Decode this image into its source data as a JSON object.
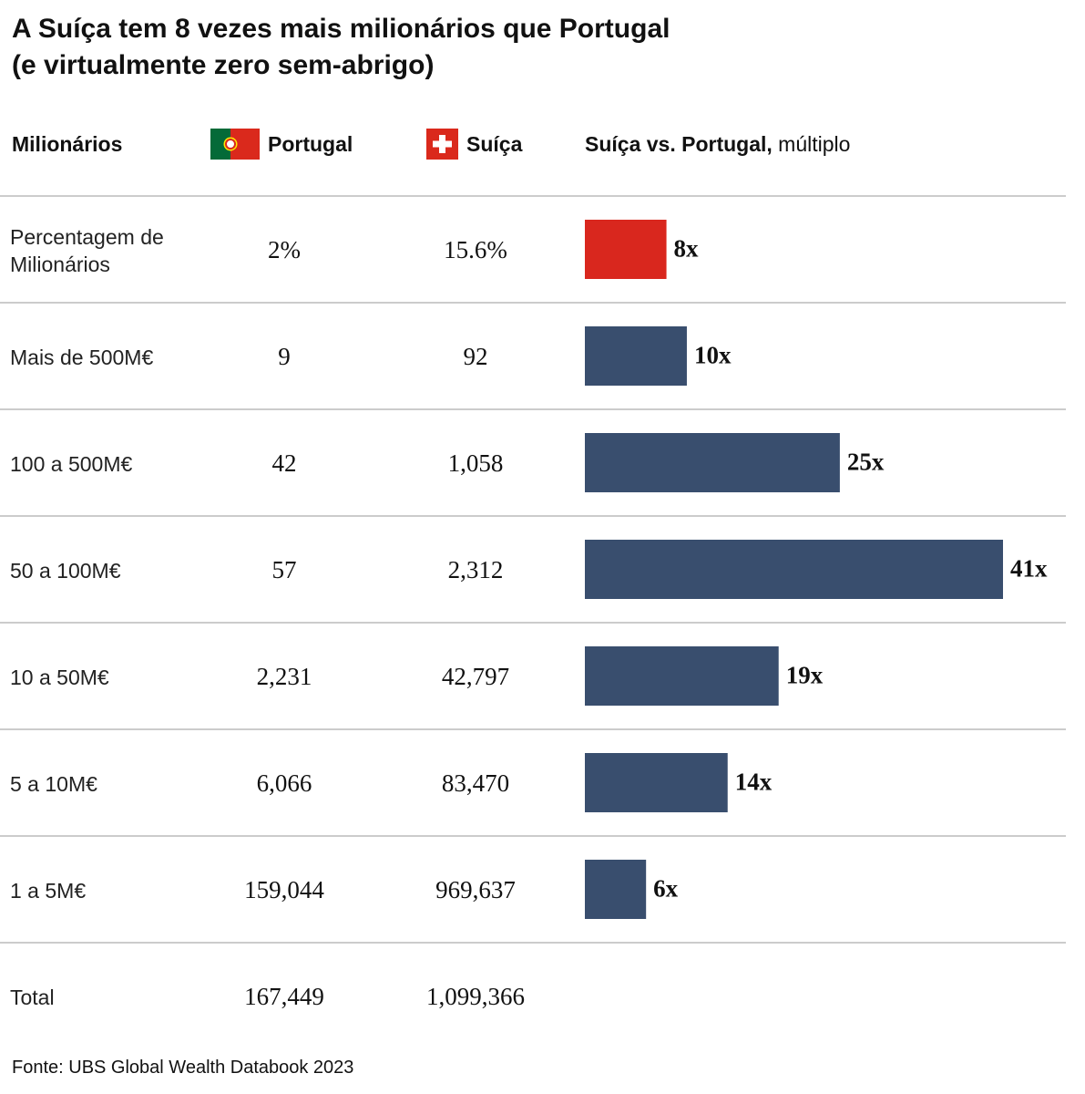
{
  "title_line1": "A Suíça tem 8 vezes mais milionários que Portugal",
  "title_line2": "(e virtualmente zero sem-abrigo)",
  "header": {
    "col_category": "Milionários",
    "col_portugal": "Portugal",
    "col_suica": "Suíça",
    "col_chart_bold": "Suíça vs. Portugal,",
    "col_chart_normal": " múltiplo"
  },
  "colors": {
    "highlight": "#d9271e",
    "bar": "#394e6e",
    "rule": "#cccccc"
  },
  "rows": [
    {
      "label": "Percentagem de Milionários",
      "portugal": "2%",
      "suica": "15.6%"
    },
    {
      "label": "Mais de 500M€",
      "portugal": "9",
      "suica": "92"
    },
    {
      "label": "100 a 500M€",
      "portugal": "42",
      "suica": "1,058"
    },
    {
      "label": "50 a 100M€",
      "portugal": "57",
      "suica": "2,312"
    },
    {
      "label": "10 a 50M€",
      "portugal": "2,231",
      "suica": "42,797"
    },
    {
      "label": "5 a 10M€",
      "portugal": "6,066",
      "suica": "83,470"
    },
    {
      "label": "1 a 5M€",
      "portugal": "159,044",
      "suica": "969,637"
    }
  ],
  "total": {
    "label": "Total",
    "portugal": "167,449",
    "suica": "1,099,366"
  },
  "chart_data": {
    "type": "bar",
    "orientation": "horizontal",
    "title": "Suíça vs. Portugal, múltiplo",
    "categories": [
      "Percentagem de Milionários",
      "Mais de 500M€",
      "100 a 500M€",
      "50 a 100M€",
      "10 a 50M€",
      "5 a 10M€",
      "1 a 5M€"
    ],
    "values": [
      8,
      10,
      25,
      41,
      19,
      14,
      6
    ],
    "value_labels": [
      "8x",
      "10x",
      "25x",
      "41x",
      "19x",
      "14x",
      "6x"
    ],
    "highlight_index": 0,
    "xlim": [
      0,
      41
    ]
  },
  "source": "Fonte: UBS Global Wealth Databook 2023"
}
